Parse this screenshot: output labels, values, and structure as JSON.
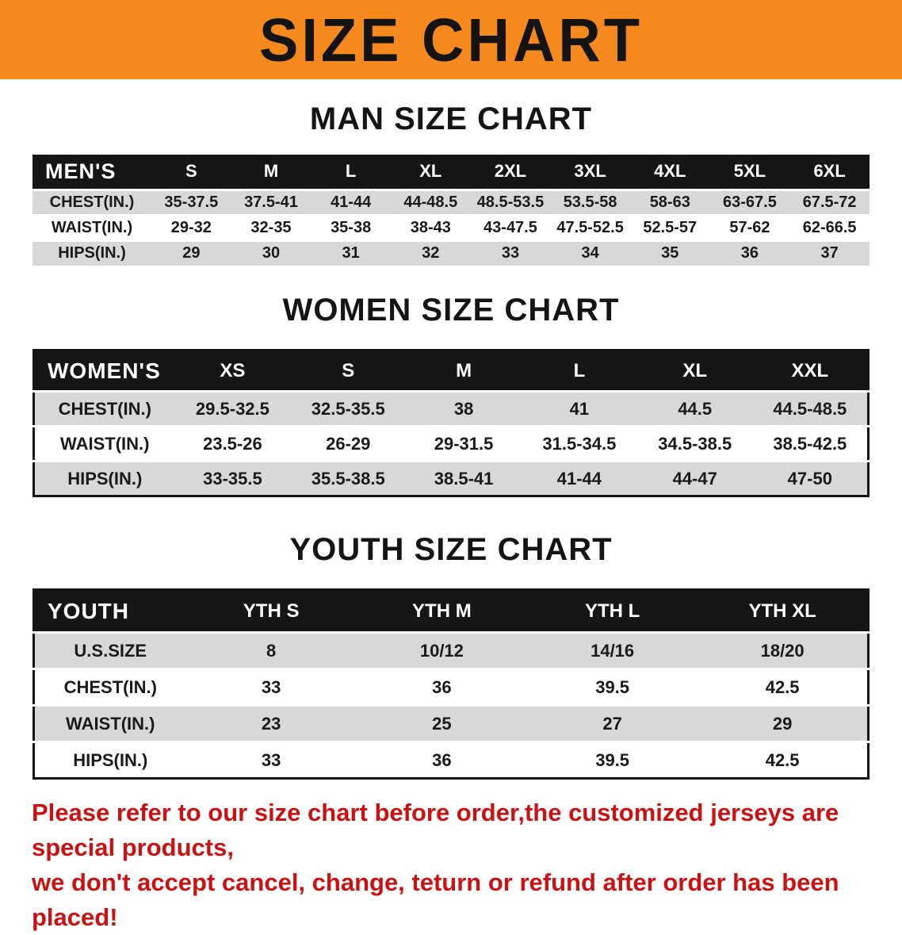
{
  "theme": {
    "banner_orange": "#F6891D",
    "header_black": "#161616",
    "row_gray": "#D8D8D8",
    "disclaimer_red": "#CB1111",
    "text_black": "#1A1A1A"
  },
  "banner": {
    "title": "SIZE CHART"
  },
  "sections": [
    {
      "id": "men",
      "heading": "MAN SIZE CHART",
      "table": {
        "corner": "MEN'S",
        "columns": [
          "S",
          "M",
          "L",
          "XL",
          "2XL",
          "3XL",
          "4XL",
          "5XL",
          "6XL"
        ],
        "rows": [
          {
            "label": "CHEST(IN.)",
            "values": [
              "35-37.5",
              "37.5-41",
              "41-44",
              "44-48.5",
              "48.5-53.5",
              "53.5-58",
              "58-63",
              "63-67.5",
              "67.5-72"
            ]
          },
          {
            "label": "WAIST(IN.)",
            "values": [
              "29-32",
              "32-35",
              "35-38",
              "38-43",
              "43-47.5",
              "47.5-52.5",
              "52.5-57",
              "57-62",
              "62-66.5"
            ]
          },
          {
            "label": "HIPS(IN.)",
            "values": [
              "29",
              "30",
              "31",
              "32",
              "33",
              "34",
              "35",
              "36",
              "37"
            ]
          }
        ]
      }
    },
    {
      "id": "women",
      "heading": "WOMEN SIZE CHART",
      "table": {
        "corner": "WOMEN'S",
        "columns": [
          "XS",
          "S",
          "M",
          "L",
          "XL",
          "XXL"
        ],
        "rows": [
          {
            "label": "CHEST(IN.)",
            "values": [
              "29.5-32.5",
              "32.5-35.5",
              "38",
              "41",
              "44.5",
              "44.5-48.5"
            ]
          },
          {
            "label": "WAIST(IN.)",
            "values": [
              "23.5-26",
              "26-29",
              "29-31.5",
              "31.5-34.5",
              "34.5-38.5",
              "38.5-42.5"
            ]
          },
          {
            "label": "HIPS(IN.)",
            "values": [
              "33-35.5",
              "35.5-38.5",
              "38.5-41",
              "41-44",
              "44-47",
              "47-50"
            ]
          }
        ]
      }
    },
    {
      "id": "youth",
      "heading": "YOUTH SIZE CHART",
      "table": {
        "corner": "YOUTH",
        "columns": [
          "YTH S",
          "YTH M",
          "YTH L",
          "YTH XL"
        ],
        "rows": [
          {
            "label": "U.S.SIZE",
            "values": [
              "8",
              "10/12",
              "14/16",
              "18/20"
            ]
          },
          {
            "label": "CHEST(IN.)",
            "values": [
              "33",
              "36",
              "39.5",
              "42.5"
            ]
          },
          {
            "label": "WAIST(IN.)",
            "values": [
              "23",
              "25",
              "27",
              "29"
            ]
          },
          {
            "label": "HIPS(IN.)",
            "values": [
              "33",
              "36",
              "39.5",
              "42.5"
            ]
          }
        ]
      }
    }
  ],
  "disclaimer": {
    "line1": "Please refer to our size chart before order,the customized jerseys are special products,",
    "line2": "we don't accept cancel, change, teturn or refund after order has been placed!"
  }
}
